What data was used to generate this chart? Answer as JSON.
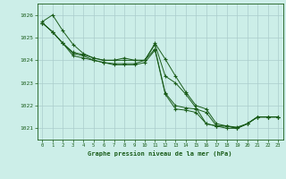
{
  "title": "Graphe pression niveau de la mer (hPa)",
  "background_color": "#cceee8",
  "grid_color": "#aacccc",
  "line_color": "#1a5c1a",
  "x_ticks": [
    0,
    1,
    2,
    3,
    4,
    5,
    6,
    7,
    8,
    9,
    10,
    11,
    12,
    13,
    14,
    15,
    16,
    17,
    18,
    19,
    20,
    21,
    22,
    23
  ],
  "ylim": [
    1020.5,
    1026.5
  ],
  "yticks": [
    1021,
    1022,
    1023,
    1024,
    1025,
    1026
  ],
  "series": [
    [
      1025.7,
      1026.0,
      1025.3,
      1024.7,
      1024.3,
      1024.1,
      1024.0,
      1024.0,
      1024.1,
      1024.0,
      1024.0,
      1024.75,
      1024.05,
      1023.3,
      1022.6,
      1022.0,
      1021.85,
      1021.2,
      1021.1,
      1021.05,
      1021.2,
      1021.5,
      1021.5,
      1021.5
    ],
    [
      1025.65,
      1025.25,
      1024.75,
      1024.35,
      1024.25,
      1024.1,
      1024.0,
      1024.0,
      1024.0,
      1024.0,
      1024.0,
      1024.7,
      1023.3,
      1023.0,
      1022.5,
      1021.9,
      1021.2,
      1021.1,
      1021.0,
      1021.0,
      1021.2,
      1021.5,
      1021.5,
      1021.5
    ],
    [
      1025.65,
      1025.25,
      1024.75,
      1024.3,
      1024.2,
      1024.0,
      1023.9,
      1023.85,
      1023.85,
      1023.85,
      1024.0,
      1024.5,
      1022.55,
      1022.0,
      1021.9,
      1021.85,
      1021.7,
      1021.1,
      1021.1,
      1021.0,
      1021.2,
      1021.5,
      1021.5,
      1021.5
    ],
    [
      1025.65,
      1025.25,
      1024.75,
      1024.2,
      1024.1,
      1024.0,
      1023.9,
      1023.8,
      1023.8,
      1023.8,
      1023.9,
      1024.45,
      1022.5,
      1021.85,
      1021.8,
      1021.7,
      1021.2,
      1021.1,
      1021.1,
      1021.0,
      1021.2,
      1021.5,
      1021.5,
      1021.5
    ]
  ]
}
